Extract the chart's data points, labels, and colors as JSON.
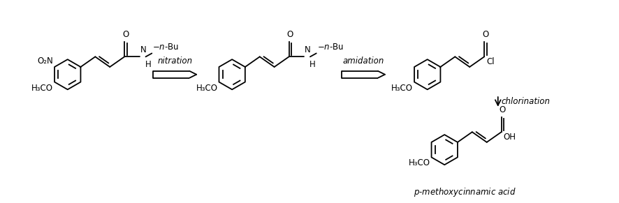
{
  "fig_width": 8.86,
  "fig_height": 2.91,
  "dpi": 100,
  "bg_color": "#ffffff",
  "lc": "#1a1a1a",
  "lw": 1.3,
  "label1": "nitration",
  "label2": "amidation",
  "label3": "chlorination",
  "label4": "p-methoxycinnamic acid",
  "font_size": 8.5
}
